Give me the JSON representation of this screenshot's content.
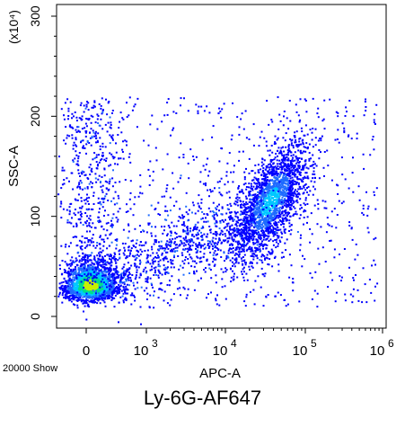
{
  "figure": {
    "caption": "Ly-6G-AF647",
    "event_count_label": "20000 Show"
  },
  "chart_data": {
    "type": "scatter",
    "plot_style": "density dot plot",
    "xlabel": "APC-A",
    "ylabel": "SSC-A",
    "y_multiplier_label": "(x10⁴)",
    "x_scale": "biexponential",
    "x_ticks": [
      {
        "label": "0",
        "value": 0
      },
      {
        "label": "10",
        "exp": "3",
        "value": 1000
      },
      {
        "label": "10",
        "exp": "4",
        "value": 10000
      },
      {
        "label": "10",
        "exp": "5",
        "value": 100000
      },
      {
        "label": "10",
        "exp": "6",
        "value": 1000000
      }
    ],
    "y_ticks": [
      "0",
      "100",
      "200",
      "300"
    ],
    "ylim": [
      0,
      310
    ],
    "populations": [
      {
        "name": "",
        "x_center": 0,
        "y_center": 28,
        "relative_density": "high"
      },
      {
        "name": "",
        "x_center": 40000,
        "y_center": 115,
        "relative_density": "high"
      },
      {
        "name": "",
        "x_center": 2000,
        "y_center": 100,
        "relative_density": "low"
      }
    ],
    "density_colors": [
      "#0000ff",
      "#1e6bff",
      "#00c8ff",
      "#00e08a",
      "#c8f000"
    ]
  }
}
